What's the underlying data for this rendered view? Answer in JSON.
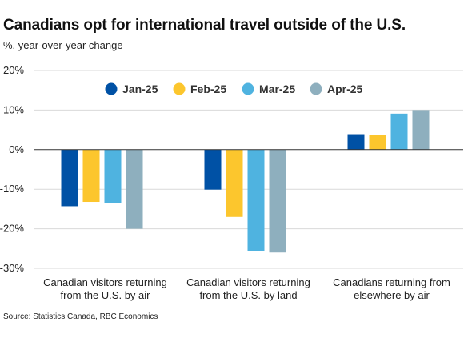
{
  "title": "Canadians opt for international travel outside of the U.S.",
  "subtitle": "%, year-over-year change",
  "source": "Source: Statistics Canada, RBC Economics",
  "chart_data": {
    "type": "bar",
    "title": "Canadians opt for international travel outside of the U.S.",
    "subtitle": "%, year-over-year change",
    "xlabel": "",
    "ylabel": "",
    "ylim": [
      -30,
      20
    ],
    "yticks": [
      20,
      10,
      0,
      -10,
      -20,
      -30
    ],
    "ytick_labels": [
      "20%",
      "10%",
      "0%",
      "-10%",
      "-20%",
      "-30%"
    ],
    "grid": true,
    "legend_position": "top",
    "categories": [
      [
        "Canadian visitors returning",
        "from the U.S. by air"
      ],
      [
        "Canadian visitors returning",
        "from the U.S. by land"
      ],
      [
        "Canadians returning from",
        "elsewhere by air"
      ]
    ],
    "series": [
      {
        "name": "Jan-25",
        "color": "#0051a5",
        "values": [
          -14.3,
          -10.1,
          3.9
        ]
      },
      {
        "name": "Feb-25",
        "color": "#fcc62d",
        "values": [
          -13.2,
          -17.0,
          3.7
        ]
      },
      {
        "name": "Mar-25",
        "color": "#4fb3e0",
        "values": [
          -13.5,
          -25.6,
          9.1
        ]
      },
      {
        "name": "Apr-25",
        "color": "#8eafbe",
        "values": [
          -20.0,
          -26.0,
          10.0
        ]
      }
    ]
  }
}
